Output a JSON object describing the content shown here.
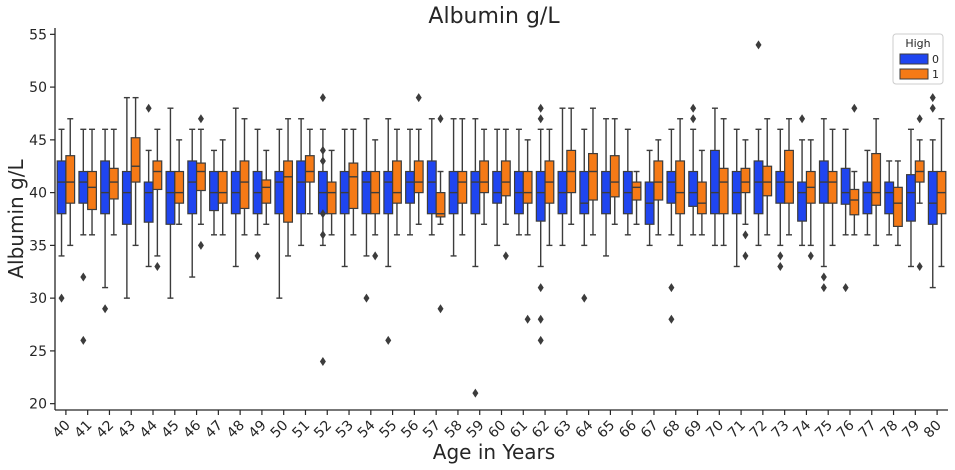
{
  "chart_data": {
    "type": "box",
    "title": "Albumin g/L",
    "xlabel": "Age in Years",
    "ylabel": "Albumin g/L",
    "ylim": [
      19.4,
      55.6
    ],
    "yticks": [
      20,
      25,
      30,
      35,
      40,
      45,
      50,
      55
    ],
    "grid": false,
    "legend": {
      "title": "High",
      "placement": "top-right"
    },
    "categories": [
      "40",
      "41",
      "42",
      "43",
      "44",
      "45",
      "46",
      "47",
      "48",
      "49",
      "50",
      "51",
      "52",
      "53",
      "54",
      "55",
      "56",
      "57",
      "58",
      "59",
      "60",
      "61",
      "62",
      "63",
      "64",
      "65",
      "66",
      "67",
      "68",
      "69",
      "70",
      "71",
      "72",
      "73",
      "74",
      "75",
      "76",
      "77",
      "78",
      "79",
      "80"
    ],
    "series": [
      {
        "name": "0",
        "color": "#1f45f0",
        "boxes": [
          {
            "q1": 38,
            "median": 41,
            "q3": 43,
            "low": 34,
            "high": 46,
            "outliers": [
              30
            ]
          },
          {
            "q1": 39,
            "median": 41,
            "q3": 42,
            "low": 36,
            "high": 46,
            "outliers": [
              26,
              32
            ]
          },
          {
            "q1": 38,
            "median": 40,
            "q3": 43,
            "low": 31,
            "high": 46,
            "outliers": [
              29
            ]
          },
          {
            "q1": 37,
            "median": 40,
            "q3": 42,
            "low": 30,
            "high": 49,
            "outliers": []
          },
          {
            "q1": 37.2,
            "median": 40,
            "q3": 41,
            "low": 33,
            "high": 44,
            "outliers": [
              48
            ]
          },
          {
            "q1": 37,
            "median": 40,
            "q3": 42,
            "low": 30,
            "high": 48,
            "outliers": []
          },
          {
            "q1": 38,
            "median": 41,
            "q3": 43,
            "low": 32,
            "high": 46,
            "outliers": []
          },
          {
            "q1": 38.3,
            "median": 40,
            "q3": 42,
            "low": 36,
            "high": 44,
            "outliers": []
          },
          {
            "q1": 38,
            "median": 40,
            "q3": 42,
            "low": 33,
            "high": 48,
            "outliers": []
          },
          {
            "q1": 38,
            "median": 40,
            "q3": 42,
            "low": 36,
            "high": 46,
            "outliers": [
              34
            ]
          },
          {
            "q1": 38,
            "median": 41,
            "q3": 42,
            "low": 30,
            "high": 46,
            "outliers": []
          },
          {
            "q1": 38,
            "median": 41,
            "q3": 43,
            "low": 35,
            "high": 47,
            "outliers": []
          },
          {
            "q1": 38,
            "median": 40,
            "q3": 42,
            "low": 35,
            "high": 46,
            "outliers": [
              24,
              36,
              38,
              43,
              44,
              49
            ]
          },
          {
            "q1": 38,
            "median": 40,
            "q3": 42,
            "low": 33,
            "high": 46,
            "outliers": []
          },
          {
            "q1": 38,
            "median": 41,
            "q3": 42,
            "low": 34,
            "high": 47,
            "outliers": [
              30
            ]
          },
          {
            "q1": 38,
            "median": 41,
            "q3": 42,
            "low": 33,
            "high": 47,
            "outliers": [
              26
            ]
          },
          {
            "q1": 39,
            "median": 41,
            "q3": 42,
            "low": 36,
            "high": 46,
            "outliers": []
          },
          {
            "q1": 38,
            "median": 41,
            "q3": 43,
            "low": 36,
            "high": 47,
            "outliers": []
          },
          {
            "q1": 38,
            "median": 40,
            "q3": 42,
            "low": 34,
            "high": 47,
            "outliers": []
          },
          {
            "q1": 38,
            "median": 41,
            "q3": 42,
            "low": 33,
            "high": 47,
            "outliers": [
              21
            ]
          },
          {
            "q1": 39,
            "median": 40,
            "q3": 42,
            "low": 35,
            "high": 46,
            "outliers": []
          },
          {
            "q1": 38,
            "median": 40,
            "q3": 42,
            "low": 36,
            "high": 46,
            "outliers": []
          },
          {
            "q1": 37.3,
            "median": 40,
            "q3": 42,
            "low": 33,
            "high": 46,
            "outliers": [
              26,
              28,
              31,
              47,
              48
            ]
          },
          {
            "q1": 38,
            "median": 40,
            "q3": 42,
            "low": 35,
            "high": 48,
            "outliers": []
          },
          {
            "q1": 38,
            "median": 39,
            "q3": 42,
            "low": 35,
            "high": 46,
            "outliers": [
              30
            ]
          },
          {
            "q1": 38,
            "median": 40,
            "q3": 42,
            "low": 34,
            "high": 47,
            "outliers": []
          },
          {
            "q1": 38,
            "median": 40,
            "q3": 42,
            "low": 36,
            "high": 46,
            "outliers": []
          },
          {
            "q1": 37,
            "median": 39,
            "q3": 41,
            "low": 35,
            "high": 44,
            "outliers": []
          },
          {
            "q1": 39,
            "median": 41,
            "q3": 42,
            "low": 36,
            "high": 46,
            "outliers": [
              28,
              31
            ]
          },
          {
            "q1": 38.7,
            "median": 40,
            "q3": 42,
            "low": 36,
            "high": 46,
            "outliers": [
              47,
              48
            ]
          },
          {
            "q1": 38,
            "median": 40,
            "q3": 44,
            "low": 35,
            "high": 48,
            "outliers": []
          },
          {
            "q1": 38,
            "median": 40,
            "q3": 42,
            "low": 33,
            "high": 46,
            "outliers": []
          },
          {
            "q1": 38,
            "median": 41,
            "q3": 43,
            "low": 35,
            "high": 46,
            "outliers": [
              54
            ]
          },
          {
            "q1": 39,
            "median": 41,
            "q3": 42,
            "low": 35,
            "high": 46,
            "outliers": [
              33,
              34
            ]
          },
          {
            "q1": 37.3,
            "median": 40,
            "q3": 41,
            "low": 35,
            "high": 45,
            "outliers": [
              47
            ]
          },
          {
            "q1": 39,
            "median": 41,
            "q3": 43,
            "low": 33,
            "high": 47,
            "outliers": [
              31,
              32
            ]
          },
          {
            "q1": 38.9,
            "median": 40,
            "q3": 42.3,
            "low": 36,
            "high": 46,
            "outliers": [
              31
            ]
          },
          {
            "q1": 38,
            "median": 40,
            "q3": 41,
            "low": 36,
            "high": 44,
            "outliers": []
          },
          {
            "q1": 38,
            "median": 40,
            "q3": 41,
            "low": 36,
            "high": 43,
            "outliers": []
          },
          {
            "q1": 37.3,
            "median": 40,
            "q3": 41.7,
            "low": 33,
            "high": 46,
            "outliers": []
          },
          {
            "q1": 37,
            "median": 39,
            "q3": 42,
            "low": 31,
            "high": 45,
            "outliers": [
              48,
              49
            ]
          }
        ]
      },
      {
        "name": "1",
        "color": "#f57a16",
        "boxes": [
          {
            "q1": 39,
            "median": 41,
            "q3": 43.5,
            "low": 35,
            "high": 47,
            "outliers": []
          },
          {
            "q1": 38.4,
            "median": 40.5,
            "q3": 42,
            "low": 36,
            "high": 46,
            "outliers": []
          },
          {
            "q1": 39.4,
            "median": 41,
            "q3": 42.3,
            "low": 36,
            "high": 46,
            "outliers": []
          },
          {
            "q1": 41,
            "median": 42.5,
            "q3": 45.2,
            "low": 35,
            "high": 49,
            "outliers": []
          },
          {
            "q1": 40.3,
            "median": 42,
            "q3": 43,
            "low": 34,
            "high": 46,
            "outliers": [
              33
            ]
          },
          {
            "q1": 39,
            "median": 40,
            "q3": 42,
            "low": 37,
            "high": 45,
            "outliers": []
          },
          {
            "q1": 40.2,
            "median": 42,
            "q3": 42.8,
            "low": 37,
            "high": 46,
            "outliers": [
              35,
              47
            ]
          },
          {
            "q1": 39,
            "median": 40,
            "q3": 42,
            "low": 36,
            "high": 45,
            "outliers": []
          },
          {
            "q1": 38.5,
            "median": 41,
            "q3": 43,
            "low": 36,
            "high": 47,
            "outliers": []
          },
          {
            "q1": 39,
            "median": 40.5,
            "q3": 41.2,
            "low": 37,
            "high": 44,
            "outliers": []
          },
          {
            "q1": 37.2,
            "median": 41.5,
            "q3": 43,
            "low": 34,
            "high": 47,
            "outliers": []
          },
          {
            "q1": 41,
            "median": 42,
            "q3": 43.5,
            "low": 38,
            "high": 46,
            "outliers": []
          },
          {
            "q1": 38,
            "median": 40,
            "q3": 41,
            "low": 36,
            "high": 44,
            "outliers": []
          },
          {
            "q1": 38.5,
            "median": 41.5,
            "q3": 42.8,
            "low": 36,
            "high": 46,
            "outliers": []
          },
          {
            "q1": 38,
            "median": 40,
            "q3": 42,
            "low": 36,
            "high": 45,
            "outliers": [
              34
            ]
          },
          {
            "q1": 39,
            "median": 40,
            "q3": 43,
            "low": 36,
            "high": 46,
            "outliers": []
          },
          {
            "q1": 40,
            "median": 41,
            "q3": 43,
            "low": 37,
            "high": 46,
            "outliers": [
              49
            ]
          },
          {
            "q1": 37.7,
            "median": 38,
            "q3": 40,
            "low": 37,
            "high": 42,
            "outliers": [
              29,
              47
            ]
          },
          {
            "q1": 39,
            "median": 41,
            "q3": 42,
            "low": 36,
            "high": 47,
            "outliers": []
          },
          {
            "q1": 40,
            "median": 41,
            "q3": 43,
            "low": 37,
            "high": 46,
            "outliers": []
          },
          {
            "q1": 39.7,
            "median": 41,
            "q3": 43,
            "low": 37,
            "high": 46,
            "outliers": [
              34
            ]
          },
          {
            "q1": 39,
            "median": 40,
            "q3": 42,
            "low": 36,
            "high": 45,
            "outliers": [
              28
            ]
          },
          {
            "q1": 39,
            "median": 41,
            "q3": 43,
            "low": 35,
            "high": 46,
            "outliers": []
          },
          {
            "q1": 40,
            "median": 42,
            "q3": 44,
            "low": 37,
            "high": 48,
            "outliers": []
          },
          {
            "q1": 39.3,
            "median": 42,
            "q3": 43.7,
            "low": 36,
            "high": 48,
            "outliers": []
          },
          {
            "q1": 39.6,
            "median": 41,
            "q3": 43.5,
            "low": 37,
            "high": 47,
            "outliers": []
          },
          {
            "q1": 39.3,
            "median": 40.5,
            "q3": 41,
            "low": 37,
            "high": 42,
            "outliers": []
          },
          {
            "q1": 39.3,
            "median": 41,
            "q3": 43,
            "low": 36,
            "high": 45,
            "outliers": []
          },
          {
            "q1": 38,
            "median": 40,
            "q3": 43,
            "low": 35,
            "high": 47,
            "outliers": []
          },
          {
            "q1": 38,
            "median": 39,
            "q3": 41,
            "low": 36,
            "high": 44,
            "outliers": []
          },
          {
            "q1": 38,
            "median": 41,
            "q3": 42.3,
            "low": 35,
            "high": 47,
            "outliers": []
          },
          {
            "q1": 40,
            "median": 41,
            "q3": 42.3,
            "low": 37,
            "high": 45,
            "outliers": [
              34,
              36
            ]
          },
          {
            "q1": 39.7,
            "median": 41,
            "q3": 42.5,
            "low": 36,
            "high": 47,
            "outliers": []
          },
          {
            "q1": 39,
            "median": 41,
            "q3": 44,
            "low": 36,
            "high": 47,
            "outliers": []
          },
          {
            "q1": 39,
            "median": 40.5,
            "q3": 42,
            "low": 35,
            "high": 45,
            "outliers": [
              34
            ]
          },
          {
            "q1": 39,
            "median": 41,
            "q3": 42,
            "low": 35,
            "high": 46,
            "outliers": []
          },
          {
            "q1": 37.9,
            "median": 39.3,
            "q3": 40.3,
            "low": 36,
            "high": 42,
            "outliers": [
              48
            ]
          },
          {
            "q1": 38.8,
            "median": 40,
            "q3": 43.7,
            "low": 35,
            "high": 47,
            "outliers": []
          },
          {
            "q1": 36.8,
            "median": 39,
            "q3": 40.5,
            "low": 35,
            "high": 43,
            "outliers": []
          },
          {
            "q1": 41,
            "median": 42,
            "q3": 43,
            "low": 39,
            "high": 45,
            "outliers": [
              33,
              47
            ]
          },
          {
            "q1": 38,
            "median": 40,
            "q3": 42,
            "low": 33,
            "high": 47,
            "outliers": []
          }
        ]
      }
    ]
  }
}
